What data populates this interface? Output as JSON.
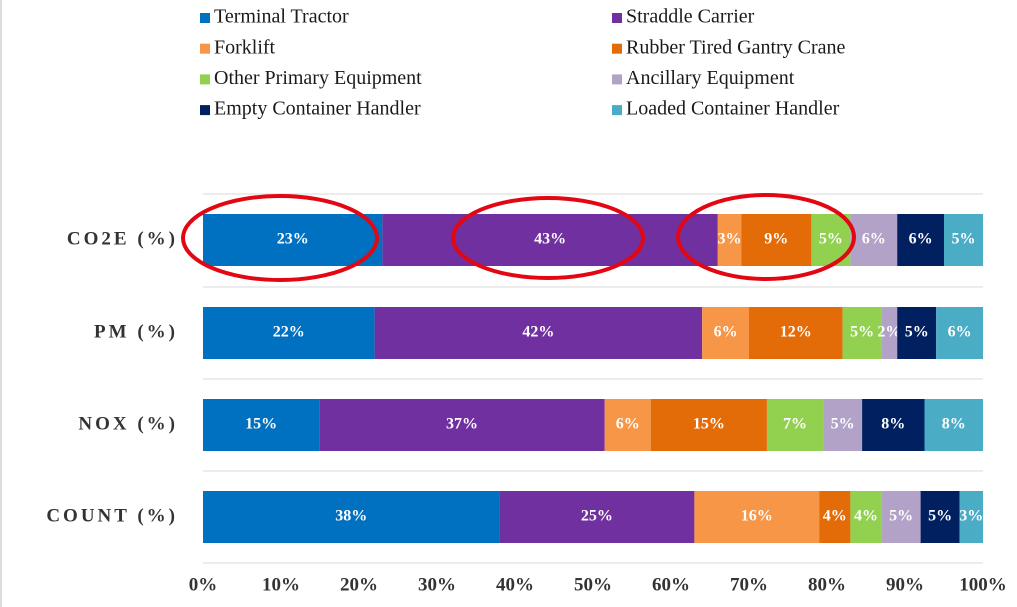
{
  "chart_data": {
    "type": "stacked_bar_horizontal",
    "categories": [
      "CO2E (%)",
      "PM (%)",
      "NOX (%)",
      "COUNT (%)"
    ],
    "series": [
      {
        "name": "Terminal Tractor",
        "color": "#0070c0",
        "values": [
          23,
          22,
          14.9,
          38
        ],
        "value_labels": [
          "23%",
          "22%",
          "15%",
          "38%"
        ]
      },
      {
        "name": "Straddle Carrier",
        "color": "#7030a0",
        "values": [
          43,
          42,
          36.6,
          25
        ],
        "value_labels": [
          "43%",
          "42%",
          "37%",
          "25%"
        ]
      },
      {
        "name": "Forklift",
        "color": "#f79646",
        "values": [
          3,
          6,
          5.9,
          16
        ],
        "value_labels": [
          "3%",
          "6%",
          "6%",
          "16%"
        ]
      },
      {
        "name": "Rubber Tired Gantry Crane",
        "color": "#e36c09",
        "values": [
          9,
          12,
          14.9,
          4
        ],
        "value_labels": [
          "9%",
          "12%",
          "15%",
          "4%"
        ]
      },
      {
        "name": "Other Primary Equipment",
        "color": "#92d050",
        "values": [
          5,
          5,
          7.2,
          4
        ],
        "value_labels": [
          "5%",
          "5%",
          "7%",
          "4%"
        ]
      },
      {
        "name": "Ancillary Equipment",
        "color": "#b3a2c7",
        "values": [
          6,
          2,
          5.0,
          5
        ],
        "value_labels": [
          "6%",
          "2%",
          "5%",
          "5%"
        ]
      },
      {
        "name": "Empty Container Handler",
        "color": "#002060",
        "values": [
          6,
          5,
          8.0,
          5
        ],
        "value_labels": [
          "6%",
          "5%",
          "8%",
          "5%"
        ]
      },
      {
        "name": "Loaded Container Handler",
        "color": "#4bacc6",
        "values": [
          5,
          6,
          7.5,
          3
        ],
        "value_labels": [
          "5%",
          "6%",
          "8%",
          "3%"
        ]
      }
    ],
    "xlim": [
      0,
      100
    ],
    "xticks": [
      {
        "value": 0,
        "label": "0%"
      },
      {
        "value": 10,
        "label": "10%"
      },
      {
        "value": 20,
        "label": "20%"
      },
      {
        "value": 30,
        "label": "30%"
      },
      {
        "value": 40,
        "label": "40%"
      },
      {
        "value": 50,
        "label": "50%"
      },
      {
        "value": 60,
        "label": "60%"
      },
      {
        "value": 70,
        "label": "70%"
      },
      {
        "value": 80,
        "label": "80%"
      },
      {
        "value": 90,
        "label": "90%"
      },
      {
        "value": 100,
        "label": "100%"
      }
    ],
    "legend": "top"
  }
}
